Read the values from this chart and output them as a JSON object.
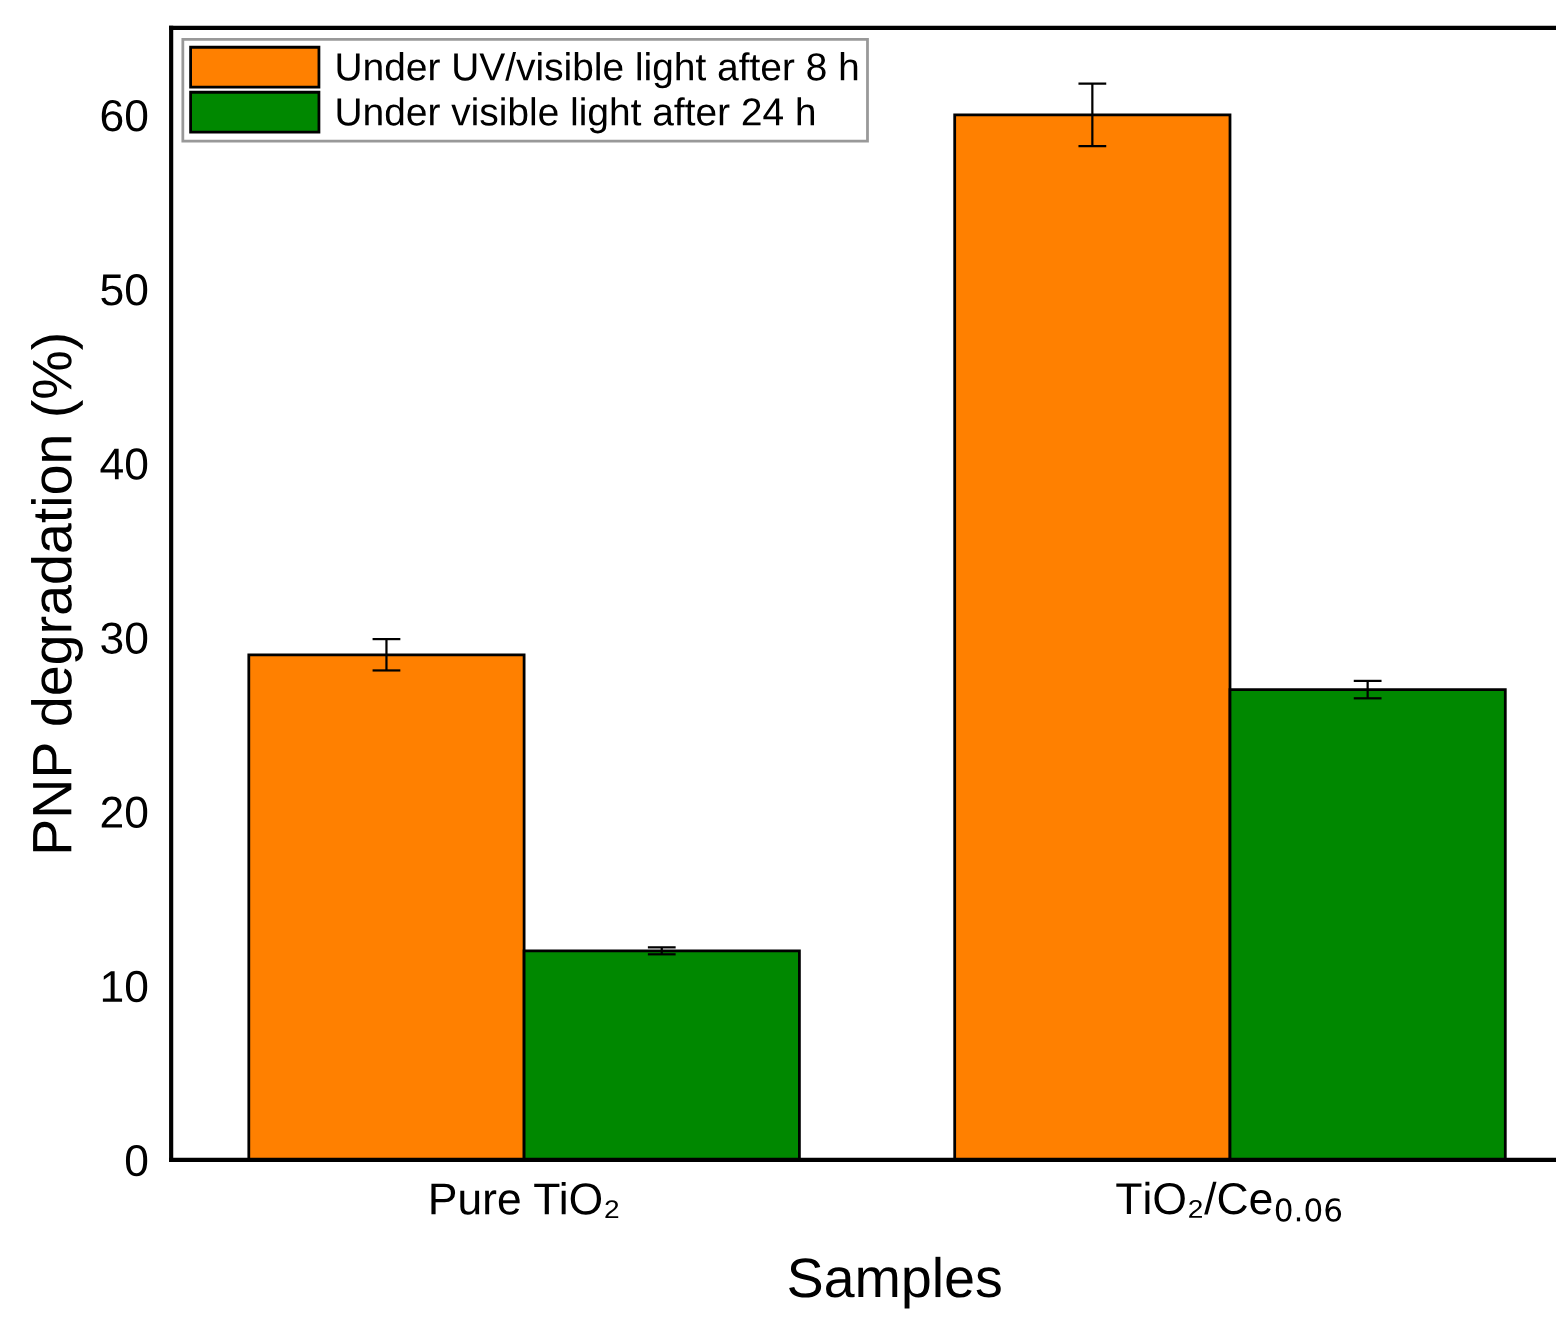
{
  "chart_data": {
    "type": "bar",
    "xlabel": "Samples",
    "ylabel": "PNP degradation (%)",
    "categories": [
      "Pure TiO₂",
      "TiO₂/Ce$_{0.06}$"
    ],
    "series": [
      {
        "name": "Under UV/visible light after 8 h",
        "color": "#ff8000",
        "values": [
          29,
          60
        ],
        "errors": [
          0.9,
          1.8
        ]
      },
      {
        "name": "Under visible light after 24 h",
        "color": "#008800",
        "values": [
          12,
          27
        ],
        "errors": [
          0.2,
          0.5
        ]
      }
    ],
    "ylim": [
      0,
      65
    ],
    "yticks": [
      0,
      10,
      20,
      30,
      40,
      50,
      60
    ],
    "grid": false,
    "legend": "top left"
  }
}
